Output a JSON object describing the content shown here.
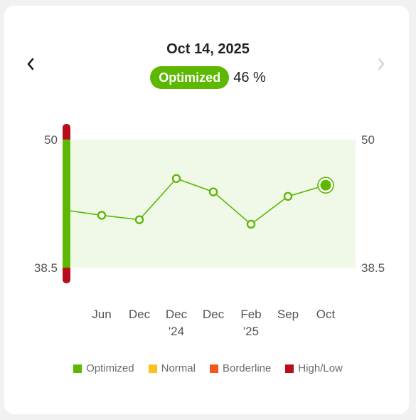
{
  "header": {
    "date": "Oct 14, 2025",
    "status_label": "Optimized",
    "percent": "46 %"
  },
  "nav": {
    "prev_icon": "chevron-left-icon",
    "next_icon": "chevron-right-icon",
    "next_enabled": false
  },
  "colors": {
    "optimized": "#5cb800",
    "normal": "#ffbf1f",
    "borderline": "#f5571a",
    "high_low": "#b80d1d",
    "band_fill": "#f0f8e8"
  },
  "legend": [
    {
      "label": "Optimized",
      "color": "#5cb800"
    },
    {
      "label": "Normal",
      "color": "#ffbf1f"
    },
    {
      "label": "Borderline",
      "color": "#f5571a"
    },
    {
      "label": "High/Low",
      "color": "#b80d1d"
    }
  ],
  "chart_data": {
    "type": "line",
    "y_tick_labels": [
      "50",
      "38.5"
    ],
    "ylim": [
      38.5,
      50
    ],
    "categories": [
      [
        "Jun"
      ],
      [
        "Dec"
      ],
      [
        "Dec",
        "'24"
      ],
      [
        "Dec"
      ],
      [
        "Feb",
        "'25"
      ],
      [
        "Sep"
      ],
      [
        "Oct"
      ]
    ],
    "values": [
      43.2,
      42.8,
      46.5,
      45.3,
      42.4,
      44.9,
      45.9
    ],
    "start_value": 43.6,
    "highlight_index": 6,
    "grid": false
  }
}
